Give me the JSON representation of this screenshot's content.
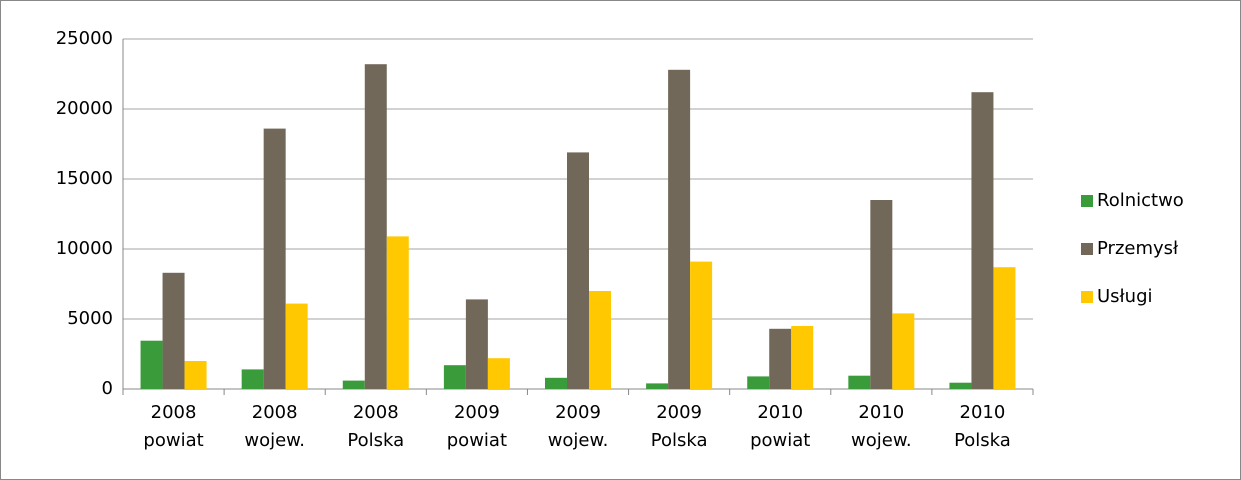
{
  "chart_data": {
    "type": "bar",
    "categories": [
      [
        "2008",
        "powiat"
      ],
      [
        "2008",
        "wojew."
      ],
      [
        "2008",
        "Polska"
      ],
      [
        "2009",
        "powiat"
      ],
      [
        "2009",
        "wojew."
      ],
      [
        "2009",
        "Polska"
      ],
      [
        "2010",
        "powiat"
      ],
      [
        "2010",
        "wojew."
      ],
      [
        "2010",
        "Polska"
      ]
    ],
    "series": [
      {
        "name": "Rolnictwo",
        "color": "#3a9b3a",
        "values": [
          3450,
          1400,
          600,
          1700,
          800,
          400,
          900,
          950,
          450
        ]
      },
      {
        "name": "Przemysł",
        "color": "#72685a",
        "values": [
          8300,
          18600,
          23200,
          6400,
          16900,
          22800,
          4300,
          13500,
          21200
        ]
      },
      {
        "name": "Usługi",
        "color": "#ffc800",
        "values": [
          2000,
          6100,
          10900,
          2200,
          7000,
          9100,
          4500,
          5400,
          8700
        ]
      }
    ],
    "ylim": [
      0,
      25000
    ],
    "yticks": [
      0,
      5000,
      10000,
      15000,
      20000,
      25000
    ],
    "grid": true,
    "legend": "right"
  }
}
